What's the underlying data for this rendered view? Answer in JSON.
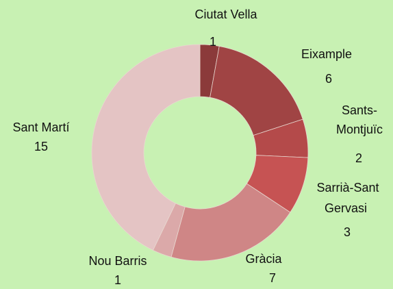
{
  "chart_data": {
    "type": "donut",
    "categories": [
      "Ciutat Vella",
      "Eixample",
      "Sants-Montjuïc",
      "Sarrià-Sant Gervasi",
      "Gràcia",
      "Nou Barris",
      "Sant Martí"
    ],
    "values": [
      1,
      6,
      2,
      3,
      7,
      1,
      15
    ],
    "colors": [
      "#8b3a3a",
      "#a04444",
      "#b44a4a",
      "#c65353",
      "#cf8686",
      "#dba9a9",
      "#e4c4c4"
    ]
  }
}
